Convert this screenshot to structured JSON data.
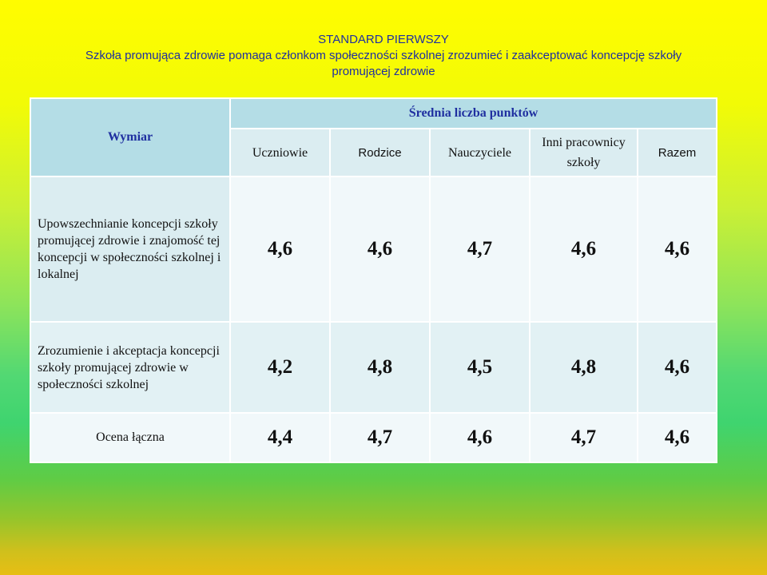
{
  "heading": {
    "line1": "STANDARD PIERWSZY",
    "line2": "Szkoła promująca zdrowie pomaga członkom społeczności szkolnej zrozumieć i zaakceptować koncepcję szkoły promującej zdrowie"
  },
  "table": {
    "dimension_header": "Wymiar",
    "group_header": "Średnia liczba punktów",
    "columns": [
      "Uczniowie",
      "Rodzice",
      "Nauczyciele",
      "Inni pracownicy szkoły",
      "Razem"
    ],
    "rows": [
      {
        "label": "Upowszechnianie koncepcji szkoły promującej zdrowie i znajomość tej koncepcji w społeczności szkolnej i lokalnej",
        "values": [
          "4,6",
          "4,6",
          "4,7",
          "4,6",
          "4,6"
        ]
      },
      {
        "label": "Zrozumienie i akceptacja koncepcji szkoły promującej zdrowie w społeczności szkolnej",
        "values": [
          "4,2",
          "4,8",
          "4,5",
          "4,8",
          "4,6"
        ]
      }
    ],
    "total": {
      "label": "Ocena łączna",
      "values": [
        "4,4",
        "4,7",
        "4,6",
        "4,7",
        "4,6"
      ]
    }
  }
}
